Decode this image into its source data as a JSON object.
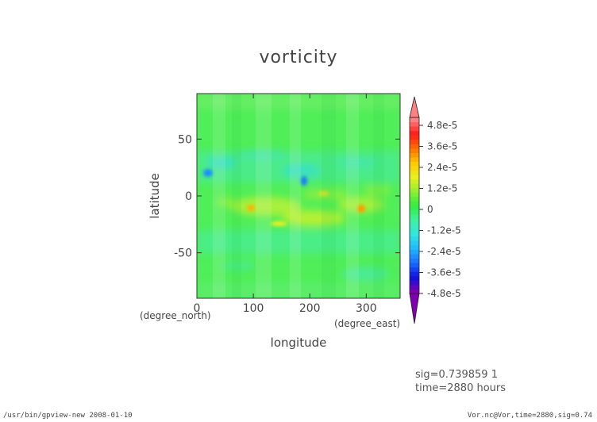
{
  "chart_data": {
    "type": "heatmap",
    "title": "vorticity",
    "xlabel": "longitude",
    "ylabel": "latitude",
    "x_units": "(degree_east)",
    "y_units": "(degree_north)",
    "xlim": [
      0,
      360
    ],
    "ylim": [
      -90,
      90
    ],
    "x_ticks": [
      0,
      100,
      200,
      300
    ],
    "y_ticks": [
      50,
      0,
      -50
    ],
    "colorbar": {
      "ticks": [
        "4.8e-5",
        "3.6e-5",
        "2.4e-5",
        "1.2e-5",
        "0",
        "-1.2e-5",
        "-2.4e-5",
        "-3.6e-5",
        "-4.8e-5"
      ],
      "range": [
        -4.8e-05,
        4.8e-05
      ],
      "colors": [
        "#7f00b0",
        "#1010e0",
        "#1a6cff",
        "#20b8ff",
        "#30e8e0",
        "#40f0a0",
        "#30ee40",
        "#90f030",
        "#e8f020",
        "#ffc800",
        "#ff7000",
        "#ff1a1a",
        "#ff8080"
      ],
      "extend": "both"
    },
    "features": [
      {
        "lon": 15,
        "lat": 22,
        "value": "-2.4e-5"
      },
      {
        "lon": 190,
        "lat": 18,
        "value": "-3.0e-5"
      },
      {
        "lon": 95,
        "lat": -10,
        "value": "2.4e-5"
      },
      {
        "lon": 140,
        "lat": -22,
        "value": "2.0e-5"
      },
      {
        "lon": 285,
        "lat": -12,
        "value": "3.0e-5"
      },
      {
        "lon": 225,
        "lat": 2,
        "value": "1.5e-5"
      },
      {
        "lon": 190,
        "lat": -25,
        "value": "1.5e-5"
      }
    ]
  },
  "meta": {
    "sig": "sig=0.739859  1",
    "time": "time=2880  hours"
  },
  "footer": {
    "left": "/usr/bin/gpview-new  2008-01-10",
    "right": "Vor.nc@Vor,time=2880,sig=0.74"
  }
}
